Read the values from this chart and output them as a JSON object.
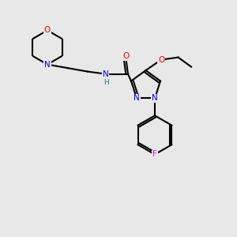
{
  "bg_color": "#e8e8e8",
  "bond_color": "#000000",
  "bond_width": 1.5,
  "atom_colors": {
    "N": "#0000ff",
    "O": "#ff0000",
    "F": "#ff00ff",
    "C": "#000000",
    "H": "#008080"
  },
  "font_size": 7.5
}
